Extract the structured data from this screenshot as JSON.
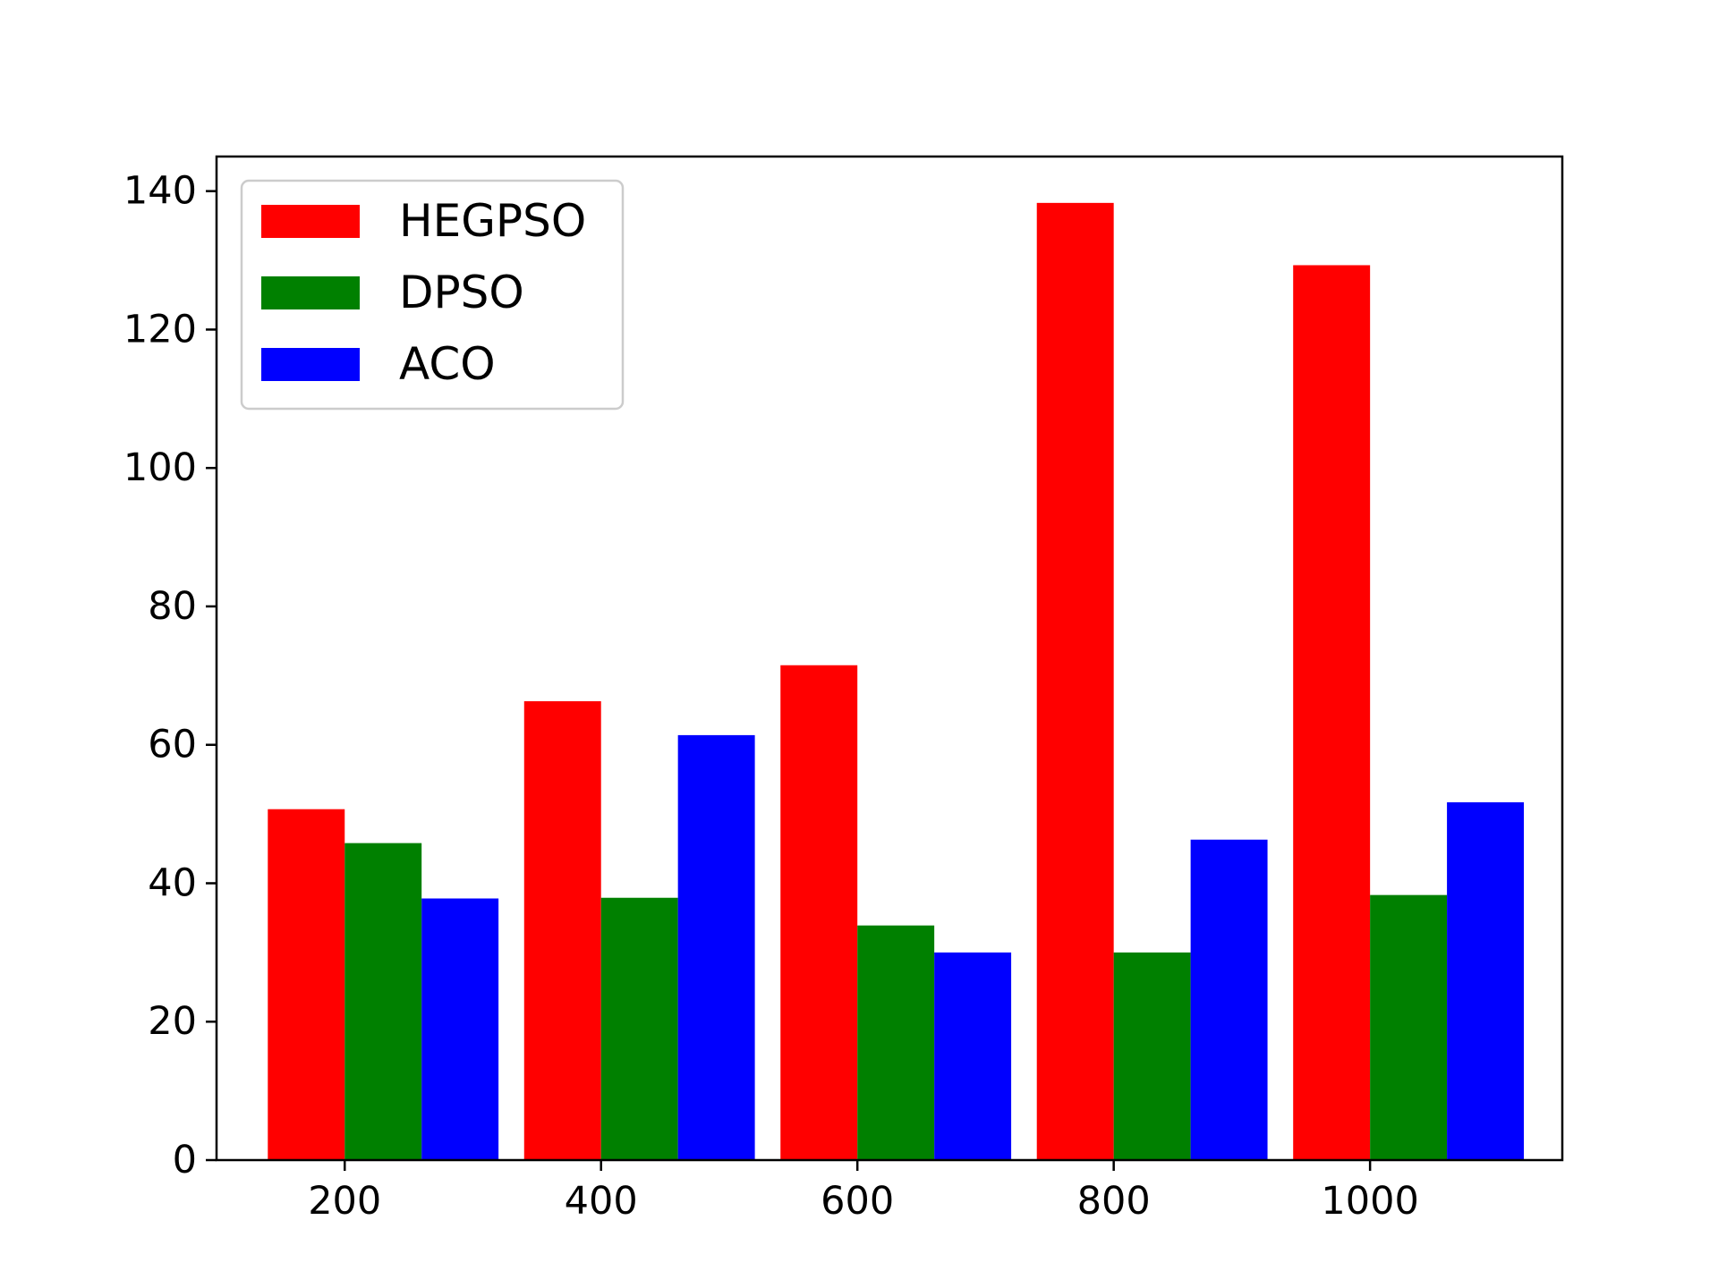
{
  "chart_data": {
    "type": "bar",
    "categories": [
      200,
      400,
      600,
      800,
      1000
    ],
    "series": [
      {
        "name": "HEGPSO",
        "color": "#ff0000",
        "values": [
          50.7,
          66.3,
          71.5,
          138.3,
          129.3
        ]
      },
      {
        "name": "DPSO",
        "color": "#008000",
        "values": [
          45.8,
          37.9,
          33.9,
          30.0,
          38.3
        ]
      },
      {
        "name": "ACO",
        "color": "#0000ff",
        "values": [
          37.8,
          61.4,
          30.0,
          46.3,
          51.7
        ]
      }
    ],
    "xlim": [
      100,
      1150
    ],
    "ylim": [
      0,
      145
    ],
    "yticks": [
      0,
      20,
      40,
      60,
      80,
      100,
      120,
      140
    ],
    "xticks": [
      200,
      400,
      600,
      800,
      1000
    ],
    "title": "",
    "xlabel": "",
    "ylabel": "",
    "grid": false,
    "legend_position": "upper-left"
  }
}
